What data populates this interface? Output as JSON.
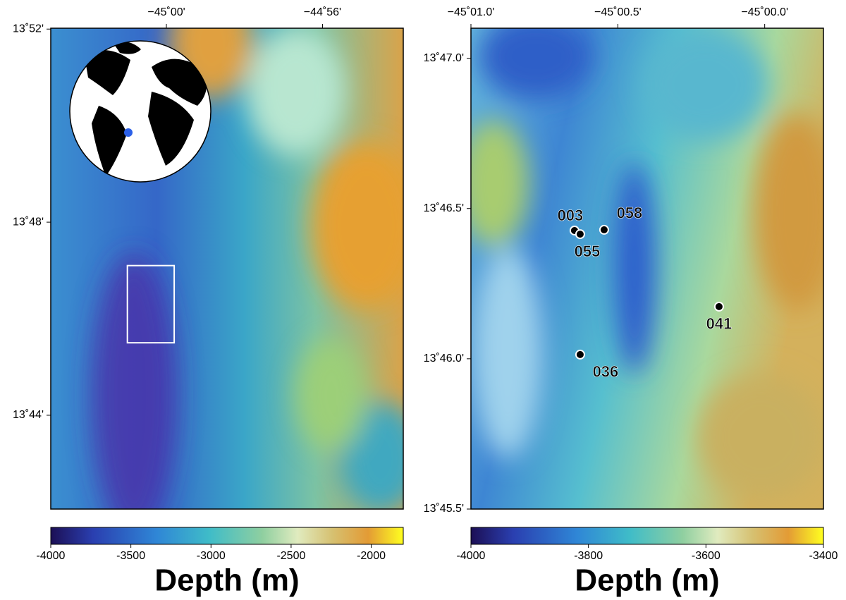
{
  "left_map": {
    "xlim": [
      -45.0494,
      -44.8988
    ],
    "ylim": [
      13.7009,
      13.867
    ],
    "xticks": [
      {
        "value": -45.0,
        "label": "−45˚00'"
      },
      {
        "value": -44.9333,
        "label": "−44˚56'"
      }
    ],
    "yticks": [
      {
        "value": 13.8667,
        "label": "13˚52'"
      },
      {
        "value": 13.8,
        "label": "13˚48'"
      },
      {
        "value": 13.7333,
        "label": "13˚44'"
      }
    ],
    "colorbar": {
      "lim": [
        -4000,
        -1800
      ],
      "ticks": [
        -4000,
        -3500,
        -3000,
        -2500,
        -2000
      ],
      "label": "Depth (m)"
    }
  },
  "right_map": {
    "xlim": [
      -45.016667,
      -44.996667
    ],
    "ylim": [
      13.758333,
      13.785
    ],
    "xticks": [
      {
        "value": -45.016667,
        "label": "−45˚01.0'"
      },
      {
        "value": -45.008333,
        "label": "−45˚00.5'"
      },
      {
        "value": -45.0,
        "label": "−45˚00.0'"
      }
    ],
    "yticks": [
      {
        "value": 13.783333,
        "label": "13˚47.0'"
      },
      {
        "value": 13.775,
        "label": "13˚46.5'"
      },
      {
        "value": 13.766667,
        "label": "13˚46.0'"
      },
      {
        "value": 13.758333,
        "label": "13˚45.5'"
      }
    ],
    "sites": [
      {
        "label": "003",
        "lon": -45.01079,
        "lat": 13.77378
      },
      {
        "label": "055",
        "lon": -45.01047,
        "lat": 13.77358
      },
      {
        "label": "058",
        "lon": -45.00911,
        "lat": 13.77382
      },
      {
        "label": "041",
        "lon": -45.00259,
        "lat": 13.76956
      },
      {
        "label": "036",
        "lon": -45.01047,
        "lat": 13.7669
      }
    ],
    "colorbar": {
      "lim": [
        -4000,
        -3400
      ],
      "ticks": [
        -4000,
        -3800,
        -3600,
        -3400
      ],
      "label": "Depth (m)"
    }
  }
}
